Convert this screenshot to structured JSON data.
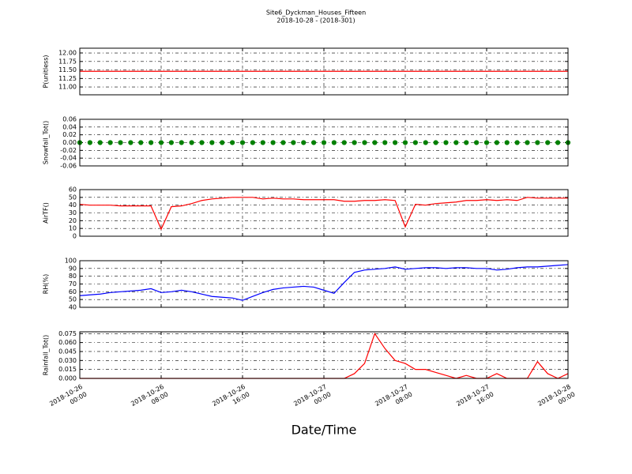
{
  "title": "Site6_Dyckman_Houses_Fifteen",
  "subtitle": "2018-10-28 - (2018-301)",
  "xlabel": "Date/Time",
  "chart_data": [
    {
      "type": "line",
      "ylabel": "P(unitless)",
      "color": "#ff0000",
      "x": [
        "2018-10-26 00:00",
        "2018-10-26 01:00",
        "2018-10-26 02:00",
        "2018-10-26 03:00",
        "2018-10-26 04:00",
        "2018-10-26 05:00",
        "2018-10-26 06:00",
        "2018-10-26 07:00",
        "2018-10-26 08:00",
        "2018-10-26 09:00",
        "2018-10-26 10:00",
        "2018-10-26 11:00",
        "2018-10-26 12:00",
        "2018-10-26 13:00",
        "2018-10-26 14:00",
        "2018-10-26 15:00",
        "2018-10-26 16:00",
        "2018-10-26 17:00",
        "2018-10-26 18:00",
        "2018-10-26 19:00",
        "2018-10-26 20:00",
        "2018-10-26 21:00",
        "2018-10-26 22:00",
        "2018-10-26 23:00",
        "2018-10-27 00:00",
        "2018-10-27 01:00",
        "2018-10-27 02:00",
        "2018-10-27 03:00",
        "2018-10-27 04:00",
        "2018-10-27 05:00",
        "2018-10-27 06:00",
        "2018-10-27 07:00",
        "2018-10-27 08:00",
        "2018-10-27 09:00",
        "2018-10-27 10:00",
        "2018-10-27 11:00",
        "2018-10-27 12:00",
        "2018-10-27 13:00",
        "2018-10-27 14:00",
        "2018-10-27 15:00",
        "2018-10-27 16:00",
        "2018-10-27 17:00",
        "2018-10-27 18:00",
        "2018-10-27 19:00",
        "2018-10-27 20:00",
        "2018-10-27 21:00",
        "2018-10-27 22:00",
        "2018-10-27 23:00",
        "2018-10-28 00:00"
      ],
      "values": [
        11.46,
        11.46,
        11.46,
        11.46,
        11.46,
        11.46,
        11.46,
        11.46,
        11.46,
        11.46,
        11.46,
        11.46,
        11.46,
        11.46,
        11.46,
        11.46,
        11.46,
        11.46,
        11.46,
        11.46,
        11.46,
        11.46,
        11.46,
        11.46,
        11.46,
        11.46,
        11.46,
        11.46,
        11.46,
        11.46,
        11.46,
        11.46,
        11.46,
        11.46,
        11.46,
        11.46,
        11.46,
        11.46,
        11.46,
        11.46,
        11.46,
        11.46,
        11.46,
        11.46,
        11.46,
        11.46,
        11.46,
        11.46,
        11.46
      ],
      "ylim": [
        10.77,
        12.14
      ],
      "yticks": [
        {
          "value": 11.0,
          "label": "11.00"
        },
        {
          "value": 11.25,
          "label": "11.25"
        },
        {
          "value": 11.5,
          "label": "11.50"
        },
        {
          "value": 11.75,
          "label": "11.75"
        },
        {
          "value": 12.0,
          "label": "12.00"
        }
      ],
      "grid": true
    },
    {
      "type": "scatter",
      "ylabel": "Snowfall_Tot()",
      "color": "#008000",
      "x": [
        "2018-10-26 00:00",
        "2018-10-26 01:00",
        "2018-10-26 02:00",
        "2018-10-26 03:00",
        "2018-10-26 04:00",
        "2018-10-26 05:00",
        "2018-10-26 06:00",
        "2018-10-26 07:00",
        "2018-10-26 08:00",
        "2018-10-26 09:00",
        "2018-10-26 10:00",
        "2018-10-26 11:00",
        "2018-10-26 12:00",
        "2018-10-26 13:00",
        "2018-10-26 14:00",
        "2018-10-26 15:00",
        "2018-10-26 16:00",
        "2018-10-26 17:00",
        "2018-10-26 18:00",
        "2018-10-26 19:00",
        "2018-10-26 20:00",
        "2018-10-26 21:00",
        "2018-10-26 22:00",
        "2018-10-26 23:00",
        "2018-10-27 00:00",
        "2018-10-27 01:00",
        "2018-10-27 02:00",
        "2018-10-27 03:00",
        "2018-10-27 04:00",
        "2018-10-27 05:00",
        "2018-10-27 06:00",
        "2018-10-27 07:00",
        "2018-10-27 08:00",
        "2018-10-27 09:00",
        "2018-10-27 10:00",
        "2018-10-27 11:00",
        "2018-10-27 12:00",
        "2018-10-27 13:00",
        "2018-10-27 14:00",
        "2018-10-27 15:00",
        "2018-10-27 16:00",
        "2018-10-27 17:00",
        "2018-10-27 18:00",
        "2018-10-27 19:00",
        "2018-10-27 20:00",
        "2018-10-27 21:00",
        "2018-10-27 22:00",
        "2018-10-27 23:00",
        "2018-10-28 00:00"
      ],
      "values": [
        0,
        0,
        0,
        0,
        0,
        0,
        0,
        0,
        0,
        0,
        0,
        0,
        0,
        0,
        0,
        0,
        0,
        0,
        0,
        0,
        0,
        0,
        0,
        0,
        0,
        0,
        0,
        0,
        0,
        0,
        0,
        0,
        0,
        0,
        0,
        0,
        0,
        0,
        0,
        0,
        0,
        0,
        0,
        0,
        0,
        0,
        0,
        0,
        0
      ],
      "ylim": [
        -0.06,
        0.06
      ],
      "yticks": [
        -0.06,
        -0.04,
        -0.02,
        {
          "value": 0,
          "label": "0.00"
        },
        0.02,
        0.04,
        0.06
      ],
      "grid": true
    },
    {
      "type": "line",
      "ylabel": "AirTF()",
      "color": "#ff0000",
      "x": [
        "2018-10-26 00:00",
        "2018-10-26 01:00",
        "2018-10-26 02:00",
        "2018-10-26 03:00",
        "2018-10-26 04:00",
        "2018-10-26 05:00",
        "2018-10-26 06:00",
        "2018-10-26 07:00",
        "2018-10-26 08:00",
        "2018-10-26 09:00",
        "2018-10-26 10:00",
        "2018-10-26 11:00",
        "2018-10-26 12:00",
        "2018-10-26 13:00",
        "2018-10-26 14:00",
        "2018-10-26 15:00",
        "2018-10-26 16:00",
        "2018-10-26 17:00",
        "2018-10-26 18:00",
        "2018-10-26 19:00",
        "2018-10-26 20:00",
        "2018-10-26 21:00",
        "2018-10-26 22:00",
        "2018-10-26 23:00",
        "2018-10-27 00:00",
        "2018-10-27 01:00",
        "2018-10-27 02:00",
        "2018-10-27 03:00",
        "2018-10-27 04:00",
        "2018-10-27 05:00",
        "2018-10-27 06:00",
        "2018-10-27 07:00",
        "2018-10-27 08:00",
        "2018-10-27 09:00",
        "2018-10-27 10:00",
        "2018-10-27 11:00",
        "2018-10-27 12:00",
        "2018-10-27 13:00",
        "2018-10-27 14:00",
        "2018-10-27 15:00",
        "2018-10-27 16:00",
        "2018-10-27 17:00",
        "2018-10-27 18:00",
        "2018-10-27 19:00",
        "2018-10-27 20:00",
        "2018-10-27 21:00",
        "2018-10-27 22:00",
        "2018-10-27 23:00",
        "2018-10-28 00:00"
      ],
      "values": [
        41,
        40,
        40,
        40,
        39,
        39,
        39,
        39,
        9,
        38,
        39,
        42,
        46,
        48,
        49,
        50,
        50,
        50,
        48,
        49,
        48,
        48,
        47,
        47,
        47,
        47,
        45,
        45,
        46,
        46,
        47,
        46,
        12,
        41,
        40,
        42,
        43,
        44,
        46,
        46,
        47,
        46,
        47,
        46,
        50,
        49,
        49,
        49,
        49
      ],
      "ylim": [
        0,
        60
      ],
      "yticks": [
        0,
        10,
        20,
        30,
        40,
        50,
        60
      ],
      "grid": true
    },
    {
      "type": "line",
      "ylabel": "RH(%)",
      "color": "#0000ff",
      "x": [
        "2018-10-26 00:00",
        "2018-10-26 01:00",
        "2018-10-26 02:00",
        "2018-10-26 03:00",
        "2018-10-26 04:00",
        "2018-10-26 05:00",
        "2018-10-26 06:00",
        "2018-10-26 07:00",
        "2018-10-26 08:00",
        "2018-10-26 09:00",
        "2018-10-26 10:00",
        "2018-10-26 11:00",
        "2018-10-26 12:00",
        "2018-10-26 13:00",
        "2018-10-26 14:00",
        "2018-10-26 15:00",
        "2018-10-26 16:00",
        "2018-10-26 17:00",
        "2018-10-26 18:00",
        "2018-10-26 19:00",
        "2018-10-26 20:00",
        "2018-10-26 21:00",
        "2018-10-26 22:00",
        "2018-10-26 23:00",
        "2018-10-27 00:00",
        "2018-10-27 01:00",
        "2018-10-27 02:00",
        "2018-10-27 03:00",
        "2018-10-27 04:00",
        "2018-10-27 05:00",
        "2018-10-27 06:00",
        "2018-10-27 07:00",
        "2018-10-27 08:00",
        "2018-10-27 09:00",
        "2018-10-27 10:00",
        "2018-10-27 11:00",
        "2018-10-27 12:00",
        "2018-10-27 13:00",
        "2018-10-27 14:00",
        "2018-10-27 15:00",
        "2018-10-27 16:00",
        "2018-10-27 17:00",
        "2018-10-27 18:00",
        "2018-10-27 19:00",
        "2018-10-27 20:00",
        "2018-10-27 21:00",
        "2018-10-27 22:00",
        "2018-10-27 23:00",
        "2018-10-28 00:00"
      ],
      "values": [
        55,
        56,
        57,
        59,
        60,
        61,
        62,
        64,
        59,
        60,
        62,
        60,
        57,
        54,
        53,
        52,
        49,
        54,
        59,
        63,
        65,
        66,
        67,
        66,
        62,
        58,
        72,
        85,
        88,
        89,
        90,
        92,
        89,
        90,
        91,
        91,
        90,
        91,
        91,
        90,
        90,
        88,
        89,
        91,
        92,
        92,
        93,
        94,
        95
      ],
      "ylim": [
        40,
        100
      ],
      "yticks": [
        40,
        50,
        60,
        70,
        80,
        90,
        100
      ],
      "grid": true
    },
    {
      "type": "line",
      "ylabel": "Rainfall_Tot()",
      "color": "#ff0000",
      "x": [
        "2018-10-26 00:00",
        "2018-10-26 01:00",
        "2018-10-26 02:00",
        "2018-10-26 03:00",
        "2018-10-26 04:00",
        "2018-10-26 05:00",
        "2018-10-26 06:00",
        "2018-10-26 07:00",
        "2018-10-26 08:00",
        "2018-10-26 09:00",
        "2018-10-26 10:00",
        "2018-10-26 11:00",
        "2018-10-26 12:00",
        "2018-10-26 13:00",
        "2018-10-26 14:00",
        "2018-10-26 15:00",
        "2018-10-26 16:00",
        "2018-10-26 17:00",
        "2018-10-26 18:00",
        "2018-10-26 19:00",
        "2018-10-26 20:00",
        "2018-10-26 21:00",
        "2018-10-26 22:00",
        "2018-10-26 23:00",
        "2018-10-27 00:00",
        "2018-10-27 01:00",
        "2018-10-27 02:00",
        "2018-10-27 03:00",
        "2018-10-27 04:00",
        "2018-10-27 05:00",
        "2018-10-27 06:00",
        "2018-10-27 07:00",
        "2018-10-27 08:00",
        "2018-10-27 09:00",
        "2018-10-27 10:00",
        "2018-10-27 11:00",
        "2018-10-27 12:00",
        "2018-10-27 13:00",
        "2018-10-27 14:00",
        "2018-10-27 15:00",
        "2018-10-27 16:00",
        "2018-10-27 17:00",
        "2018-10-27 18:00",
        "2018-10-27 19:00",
        "2018-10-27 20:00",
        "2018-10-27 21:00",
        "2018-10-27 22:00",
        "2018-10-27 23:00",
        "2018-10-28 00:00"
      ],
      "values": [
        0,
        0,
        0,
        0,
        0,
        0,
        0,
        0,
        0,
        0,
        0,
        0,
        0,
        0,
        0,
        0,
        0,
        0,
        0,
        0,
        0,
        0,
        0,
        0,
        0,
        0,
        0,
        0.008,
        0.025,
        0.075,
        0.05,
        0.03,
        0.025,
        0.015,
        0.015,
        0.01,
        0.005,
        0,
        0.005,
        0,
        0,
        0.008,
        0,
        0,
        0,
        0.028,
        0.008,
        0,
        0.008
      ],
      "ylim": [
        0,
        0.078
      ],
      "yticks": [
        {
          "value": 0,
          "label": "0.000"
        },
        0.015,
        {
          "value": 0.03,
          "label": "0.030"
        },
        0.045,
        {
          "value": 0.06,
          "label": "0.060"
        },
        0.075
      ],
      "xlim": [
        "2018-10-26 00:00",
        "2018-10-28 00:00"
      ],
      "xticks": [
        {
          "value": "2018-10-26 00:00",
          "label": "2018-10-26\n00:00"
        },
        {
          "value": "2018-10-26 08:00",
          "label": "2018-10-26\n08:00"
        },
        {
          "value": "2018-10-26 16:00",
          "label": "2018-10-26\n16:00"
        },
        {
          "value": "2018-10-27 00:00",
          "label": "2018-10-27\n00:00"
        },
        {
          "value": "2018-10-27 08:00",
          "label": "2018-10-27\n08:00"
        },
        {
          "value": "2018-10-27 16:00",
          "label": "2018-10-27\n16:00"
        },
        {
          "value": "2018-10-28 00:00",
          "label": "2018-10-28\n00:00"
        }
      ],
      "grid": true
    }
  ]
}
